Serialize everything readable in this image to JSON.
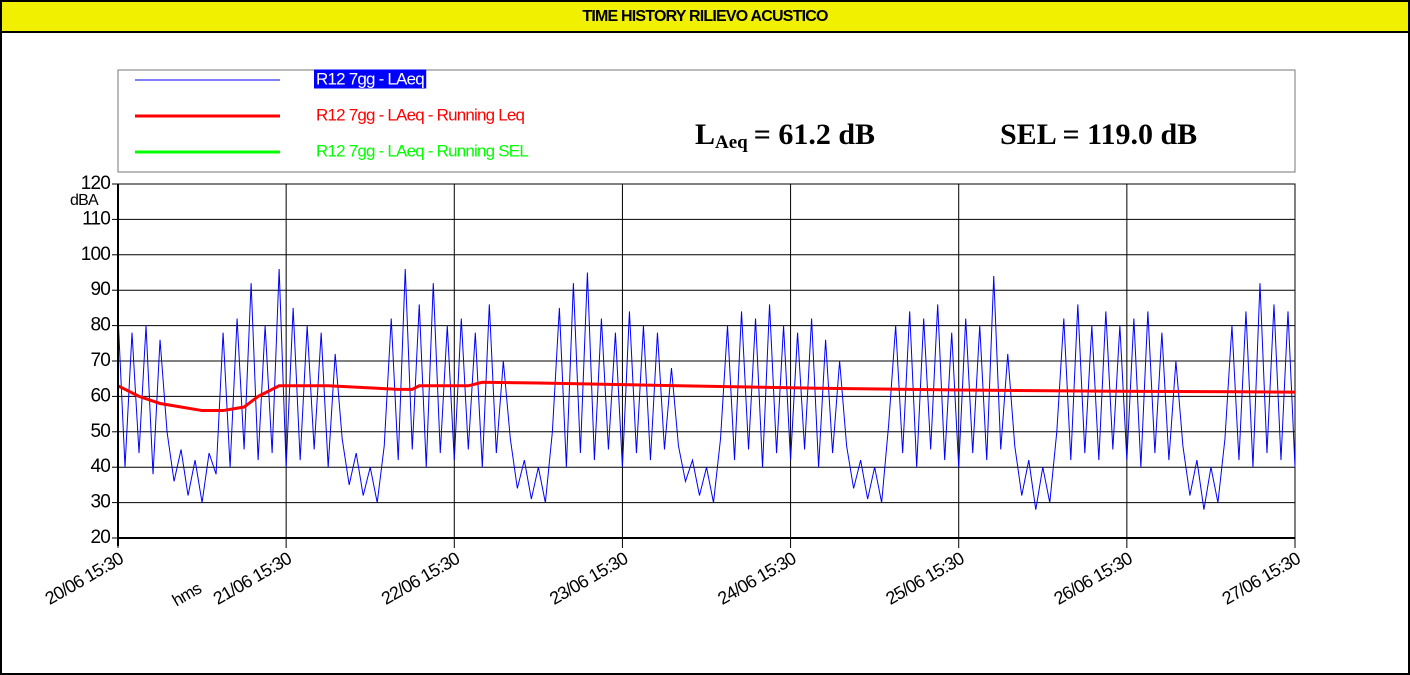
{
  "chart_data": {
    "type": "line",
    "title": "TIME HISTORY RILIEVO ACUSTICO",
    "ylabel": "dBA",
    "xlabel": "hms",
    "annotations": [
      {
        "main": "L",
        "sub": "Aeq",
        "text": "= 61.2 dB"
      },
      {
        "text": "SEL = 119.0 dB"
      }
    ],
    "x": [
      0,
      1,
      2,
      3,
      4,
      5,
      6,
      7,
      8,
      9,
      10,
      11,
      12,
      13,
      14,
      15,
      16,
      17,
      18,
      19,
      20,
      21,
      22,
      23,
      24,
      25,
      26,
      27,
      28,
      29,
      30,
      31,
      32,
      33,
      34,
      35,
      36,
      37,
      38,
      39,
      40,
      41,
      42,
      43,
      44,
      45,
      46,
      47,
      48,
      49,
      50,
      51,
      52,
      53,
      54,
      55,
      56,
      57,
      58,
      59,
      60,
      61,
      62,
      63,
      64,
      65,
      66,
      67,
      68,
      69,
      70,
      71,
      72,
      73,
      74,
      75,
      76,
      77,
      78,
      79,
      80,
      81,
      82,
      83,
      84,
      85,
      86,
      87,
      88,
      89,
      90,
      91,
      92,
      93,
      94,
      95,
      96,
      97,
      98,
      99,
      100,
      101,
      102,
      103,
      104,
      105,
      106,
      107,
      108,
      109,
      110,
      111,
      112,
      113,
      114,
      115,
      116,
      117,
      118,
      119,
      120,
      121,
      122,
      123,
      124,
      125,
      126,
      127,
      128,
      129,
      130,
      131,
      132,
      133,
      134,
      135,
      136,
      137,
      138,
      139,
      140,
      141,
      142,
      143,
      144,
      145,
      146,
      147,
      148,
      149,
      150,
      151,
      152,
      153,
      154,
      155,
      156,
      157,
      158,
      159,
      160,
      161,
      162,
      163,
      164,
      165,
      166,
      167,
      168
    ],
    "series": [
      {
        "name": "R12 7gg - LAeq",
        "color": "#0000ff",
        "values": [
          83,
          40,
          78,
          44,
          80,
          38,
          76,
          50,
          36,
          45,
          32,
          42,
          30,
          44,
          38,
          78,
          40,
          82,
          45,
          92,
          42,
          80,
          44,
          96,
          40,
          85,
          42,
          80,
          45,
          78,
          40,
          72,
          48,
          35,
          44,
          32,
          40,
          30,
          46,
          82,
          42,
          96,
          45,
          86,
          40,
          92,
          44,
          80,
          42,
          82,
          45,
          78,
          40,
          86,
          44,
          70,
          48,
          34,
          42,
          31,
          40,
          30,
          50,
          85,
          40,
          92,
          44,
          95,
          42,
          82,
          45,
          78,
          40,
          84,
          44,
          80,
          42,
          78,
          45,
          68,
          46,
          36,
          42,
          32,
          40,
          30,
          48,
          80,
          42,
          84,
          45,
          82,
          40,
          86,
          44,
          80,
          42,
          78,
          45,
          82,
          40,
          76,
          44,
          70,
          46,
          34,
          42,
          31,
          40,
          30,
          52,
          80,
          44,
          84,
          40,
          82,
          45,
          86,
          42,
          78,
          40,
          82,
          44,
          80,
          42,
          94,
          45,
          72,
          46,
          32,
          42,
          28,
          40,
          30,
          50,
          82,
          42,
          86,
          44,
          80,
          42,
          84,
          45,
          80,
          42,
          82,
          40,
          84,
          44,
          78,
          42,
          70,
          46,
          32,
          42,
          28,
          40,
          30,
          48,
          80,
          42,
          84,
          40,
          92,
          44,
          86,
          42,
          84,
          40
        ]
      },
      {
        "name": "R12 7gg - LAeq - Running Leq",
        "color": "#ff0000",
        "x": [
          0,
          1,
          3,
          6,
          9,
          12,
          15,
          18,
          20,
          21,
          23,
          30,
          40,
          42,
          43,
          50,
          52,
          60,
          80,
          100,
          120,
          140,
          160,
          168
        ],
        "values": [
          63,
          62,
          60,
          58,
          57,
          56,
          56,
          57,
          60,
          61,
          63,
          63,
          62,
          62,
          63,
          63,
          64,
          63.8,
          63,
          62.3,
          61.8,
          61.5,
          61.3,
          61.2
        ]
      },
      {
        "name": "R12 7gg - LAeq - Running SEL",
        "color": "#00ff00",
        "x": [],
        "values": []
      }
    ],
    "xlim": [
      0,
      168
    ],
    "xticks": [
      {
        "value": 0,
        "label": "20/06 15:30"
      },
      {
        "value": 24,
        "label": "21/06 15:30"
      },
      {
        "value": 48,
        "label": "22/06 15:30"
      },
      {
        "value": 72,
        "label": "23/06 15:30"
      },
      {
        "value": 96,
        "label": "24/06 15:30"
      },
      {
        "value": 120,
        "label": "25/06 15:30"
      },
      {
        "value": 144,
        "label": "26/06 15:30"
      },
      {
        "value": 168,
        "label": "27/06 15:30"
      }
    ],
    "ylim": [
      20,
      120
    ],
    "yticks": [
      20,
      30,
      40,
      50,
      60,
      70,
      80,
      90,
      100,
      110,
      120
    ],
    "grid": true
  }
}
